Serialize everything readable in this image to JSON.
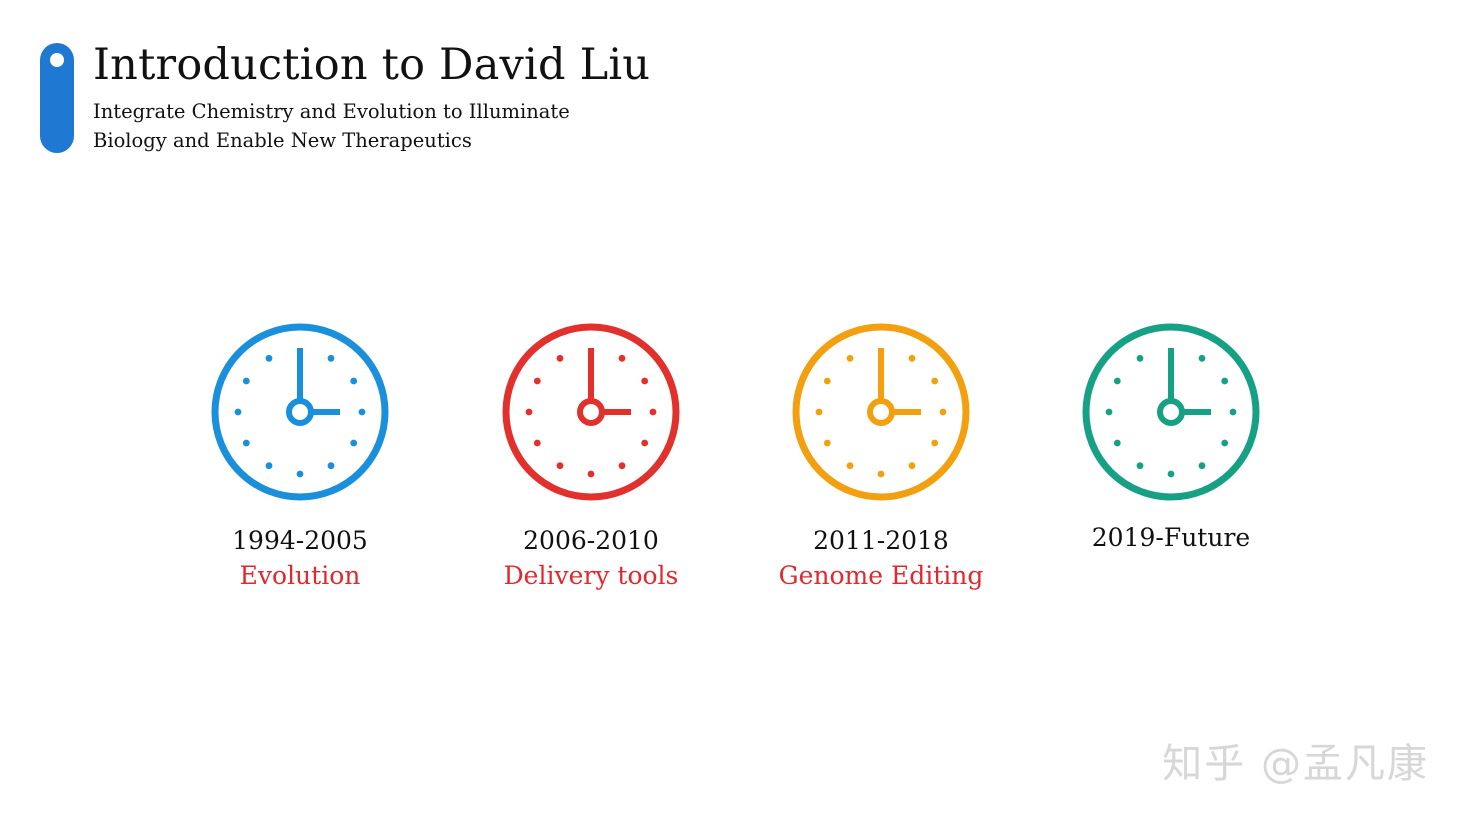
{
  "header": {
    "title": "Introduction to David Liu",
    "subtitle_line1": "Integrate Chemistry and Evolution to Illuminate",
    "subtitle_line2": "Biology and Enable New Therapeutics",
    "accent_color": "#1f78d1"
  },
  "timeline": [
    {
      "years": "1994-2005",
      "topic": "Evolution",
      "clock_color": "#1a8fdc",
      "icon": "clock-icon"
    },
    {
      "years": "2006-2010",
      "topic": "Delivery tools",
      "clock_color": "#e2302c",
      "icon": "clock-icon"
    },
    {
      "years": "2011-2018",
      "topic": "Genome Editing",
      "clock_color": "#f3a010",
      "icon": "clock-icon"
    },
    {
      "years": "2019-Future",
      "topic": "",
      "clock_color": "#17a184",
      "icon": "clock-icon"
    }
  ],
  "topic_color": "#e0282f",
  "watermark": "知乎 @孟凡康"
}
